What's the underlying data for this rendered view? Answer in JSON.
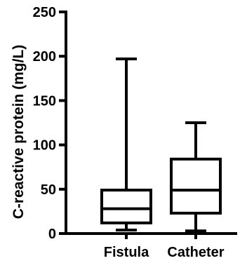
{
  "chart_data": {
    "type": "boxplot",
    "ylabel": "C-reactive protein (mg/L)",
    "xlabel": "",
    "ylim": [
      0,
      250
    ],
    "yticks": [
      0,
      50,
      100,
      150,
      200,
      250
    ],
    "ytick_labels": [
      "0",
      "50",
      "100",
      "150",
      "200",
      "250"
    ],
    "categories": [
      "Fistula",
      "Catheter"
    ],
    "boxes": [
      {
        "category": "Fistula",
        "min": 4,
        "q1": 12,
        "median": 28,
        "q3": 49,
        "max": 197
      },
      {
        "category": "Catheter",
        "min": 3,
        "q1": 23,
        "median": 49,
        "q3": 84,
        "max": 125
      }
    ],
    "grid": false,
    "legend": "none",
    "colors": {
      "stroke": "#000000",
      "fill": "#ffffff"
    }
  }
}
